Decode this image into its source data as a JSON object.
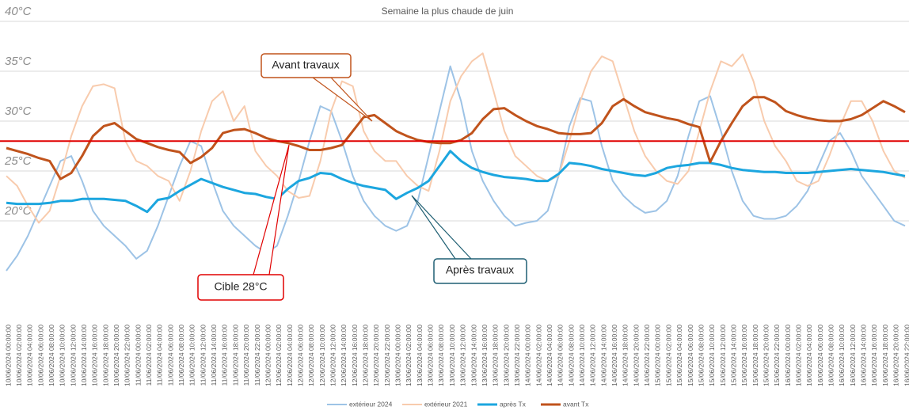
{
  "chart_data": {
    "type": "line",
    "title": "Semaine la plus chaude de juin",
    "categories": [
      "10/06/2024 00:00:00",
      "10/06/2024 02:00:00",
      "10/06/2024 04:00:00",
      "10/06/2024 06:00:00",
      "10/06/2024 08:00:00",
      "10/06/2024 10:00:00",
      "10/06/2024 12:00:00",
      "10/06/2024 14:00:00",
      "10/06/2024 16:00:00",
      "10/06/2024 18:00:00",
      "10/06/2024 20:00:00",
      "10/06/2024 22:00:00",
      "11/06/2024 00:00:00",
      "11/06/2024 02:00:00",
      "11/06/2024 04:00:00",
      "11/06/2024 06:00:00",
      "11/06/2024 08:00:00",
      "11/06/2024 10:00:00",
      "11/06/2024 12:00:00",
      "11/06/2024 14:00:00",
      "11/06/2024 16:00:00",
      "11/06/2024 18:00:00",
      "11/06/2024 20:00:00",
      "11/06/2024 22:00:00",
      "12/06/2024 00:00:00",
      "12/06/2024 02:00:00",
      "12/06/2024 04:00:00",
      "12/06/2024 06:00:00",
      "12/06/2024 08:00:00",
      "12/06/2024 10:00:00",
      "12/06/2024 12:00:00",
      "12/06/2024 14:00:00",
      "12/06/2024 16:00:00",
      "12/06/2024 18:00:00",
      "12/06/2024 20:00:00",
      "12/06/2024 22:00:00",
      "13/06/2024 00:00:00",
      "13/06/2024 02:00:00",
      "13/06/2024 04:00:00",
      "13/06/2024 06:00:00",
      "13/06/2024 08:00:00",
      "13/06/2024 10:00:00",
      "13/06/2024 12:00:00",
      "13/06/2024 14:00:00",
      "13/06/2024 16:00:00",
      "13/06/2024 18:00:00",
      "13/06/2024 20:00:00",
      "13/06/2024 22:00:00",
      "14/06/2024 00:00:00",
      "14/06/2024 02:00:00",
      "14/06/2024 04:00:00",
      "14/06/2024 06:00:00",
      "14/06/2024 08:00:00",
      "14/06/2024 10:00:00",
      "14/06/2024 12:00:00",
      "14/06/2024 14:00:00",
      "14/06/2024 16:00:00",
      "14/06/2024 18:00:00",
      "14/06/2024 20:00:00",
      "14/06/2024 22:00:00",
      "15/06/2024 00:00:00",
      "15/06/2024 02:00:00",
      "15/06/2024 04:00:00",
      "15/06/2024 06:00:00",
      "15/06/2024 08:00:00",
      "15/06/2024 10:00:00",
      "15/06/2024 12:00:00",
      "15/06/2024 14:00:00",
      "15/06/2024 16:00:00",
      "15/06/2024 18:00:00",
      "15/06/2024 20:00:00",
      "15/06/2024 22:00:00",
      "16/06/2024 00:00:00",
      "16/06/2024 02:00:00",
      "16/06/2024 04:00:00",
      "16/06/2024 06:00:00",
      "16/06/2024 08:00:00",
      "16/06/2024 10:00:00",
      "16/06/2024 12:00:00",
      "16/06/2024 14:00:00",
      "16/06/2024 16:00:00",
      "16/06/2024 18:00:00",
      "16/06/2024 20:00:00",
      "16/06/2024 22:00:00"
    ],
    "series": [
      {
        "name": "extérieur 2024",
        "color": "#9dc3e6",
        "width": 2,
        "values": [
          15,
          16.5,
          18.5,
          21,
          23.5,
          26,
          26.5,
          24,
          21,
          19.5,
          18.5,
          17.5,
          16.2,
          17,
          19.5,
          22.5,
          25.5,
          28,
          27.5,
          24,
          21,
          19.5,
          18.5,
          17.5,
          16.8,
          17.5,
          20.5,
          24,
          28,
          31.5,
          31,
          28,
          24.5,
          22,
          20.5,
          19.5,
          19,
          19.5,
          22,
          26.5,
          31,
          35.5,
          32,
          27,
          24,
          22,
          20.5,
          19.5,
          19.8,
          20,
          21,
          24.5,
          29.5,
          32.3,
          32,
          27.5,
          24,
          22.5,
          21.5,
          20.8,
          21,
          22,
          24.5,
          28.5,
          32,
          32.5,
          29,
          25,
          22,
          20.5,
          20.2,
          20.2,
          20.5,
          21.5,
          23,
          25.5,
          28,
          28.8,
          27,
          24.5,
          23,
          21.5,
          20,
          19.5
        ]
      },
      {
        "name": "extérieur 2021",
        "color": "#f8cbad",
        "width": 2,
        "values": [
          24.5,
          23.5,
          21.5,
          19.8,
          21,
          24.5,
          28.5,
          31.5,
          33.5,
          33.7,
          33.3,
          28,
          26,
          25.5,
          24.5,
          24,
          22,
          25,
          29,
          32,
          33,
          30,
          31.5,
          27,
          25.5,
          24.5,
          23,
          22.3,
          22.5,
          26,
          31,
          34,
          33.5,
          29,
          27,
          26,
          26,
          24.5,
          23.5,
          23,
          27,
          32,
          34.5,
          36,
          36.8,
          33,
          29,
          26.5,
          25.5,
          24.5,
          24,
          24.5,
          28,
          32,
          35,
          36.5,
          36,
          32.5,
          29,
          26.5,
          25,
          24,
          23.7,
          25,
          29,
          33,
          36,
          35.5,
          36.7,
          34,
          30,
          27.5,
          26,
          24,
          23.5,
          24,
          26.5,
          29.5,
          32,
          32,
          30,
          27,
          25,
          24.3
        ]
      },
      {
        "name": "après Tx",
        "color": "#1ca6df",
        "width": 3,
        "values": [
          21.8,
          21.7,
          21.7,
          21.7,
          21.8,
          22,
          22,
          22.2,
          22.2,
          22.2,
          22.1,
          22,
          21.5,
          20.9,
          22.1,
          22.3,
          23,
          23.6,
          24.2,
          23.8,
          23.4,
          23.1,
          22.8,
          22.7,
          22.4,
          22.2,
          23.2,
          24,
          24.3,
          24.8,
          24.7,
          24.2,
          23.8,
          23.5,
          23.3,
          23.1,
          22.2,
          22.8,
          23.3,
          24,
          25.5,
          27,
          26,
          25.3,
          24.9,
          24.6,
          24.4,
          24.3,
          24.2,
          24,
          24,
          24.7,
          25.8,
          25.7,
          25.5,
          25.2,
          25,
          24.8,
          24.6,
          24.5,
          24.8,
          25.3,
          25.5,
          25.6,
          25.8,
          25.8,
          25.6,
          25.3,
          25.1,
          25,
          24.9,
          24.9,
          24.8,
          24.8,
          24.8,
          24.9,
          25,
          25.1,
          25.2,
          25.1,
          25,
          24.9,
          24.7,
          24.5
        ]
      },
      {
        "name": "avant Tx",
        "color": "#c0531c",
        "width": 3,
        "values": [
          27.3,
          27,
          26.7,
          26.3,
          26,
          24.2,
          24.8,
          26.5,
          28.5,
          29.5,
          29.8,
          29,
          28.2,
          27.8,
          27.4,
          27.1,
          26.9,
          25.8,
          26.4,
          27.3,
          28.8,
          29.1,
          29.2,
          28.8,
          28.3,
          28,
          27.8,
          27.5,
          27.1,
          27.1,
          27.3,
          27.6,
          29,
          30.4,
          30.6,
          29.8,
          29,
          28.5,
          28.1,
          27.9,
          27.8,
          27.8,
          28.1,
          28.8,
          30.2,
          31.2,
          31.3,
          30.6,
          30,
          29.5,
          29.2,
          28.8,
          28.7,
          28.7,
          28.8,
          29.8,
          31.5,
          32.2,
          31.5,
          30.9,
          30.6,
          30.3,
          30.1,
          29.7,
          29.4,
          25.9,
          28,
          29.8,
          31.5,
          32.4,
          32.4,
          31.9,
          31,
          30.6,
          30.3,
          30.1,
          30,
          30,
          30.2,
          30.6,
          31.3,
          32,
          31.5,
          30.9
        ]
      }
    ],
    "target": {
      "value": 28,
      "color": "#e00000"
    },
    "annotations": [
      "Avant travaux",
      "Cible 28°C",
      "Après travaux"
    ],
    "ylim": [
      10,
      40
    ],
    "yticks": [
      {
        "value": 20,
        "label": "20°C"
      },
      {
        "value": 25,
        "label": "25°C"
      },
      {
        "value": 30,
        "label": "30°C"
      },
      {
        "value": 35,
        "label": "35°C"
      },
      {
        "value": 40,
        "label": "40°C"
      }
    ],
    "grid": true,
    "legend": "bottom"
  }
}
